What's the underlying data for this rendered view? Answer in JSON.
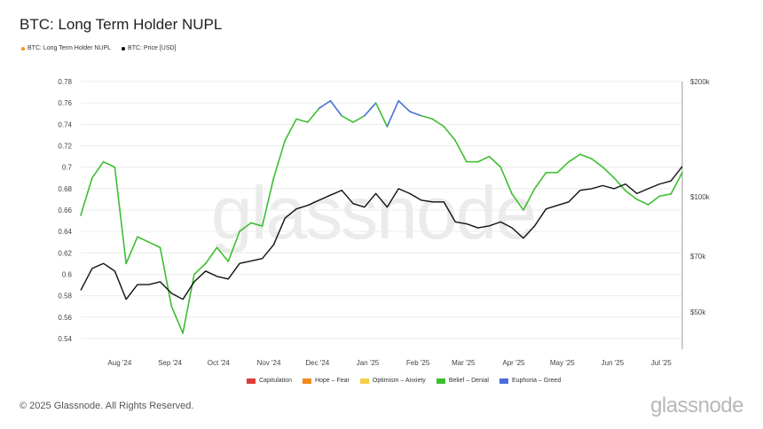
{
  "title": "BTC: Long Term Holder NUPL",
  "legend": [
    {
      "label": "BTC: Long Term Holder NUPL",
      "color": "#f7931a"
    },
    {
      "label": "BTC: Price [USD]",
      "color": "#000000"
    }
  ],
  "watermark": "glassnode",
  "footer": "© 2025 Glassnode. All Rights Reserved.",
  "brand": "glassnode",
  "zones": [
    {
      "label": "Capitulation",
      "color": "#e03b3b"
    },
    {
      "label": "Hope – Fear",
      "color": "#f28a1b"
    },
    {
      "label": "Optimism – Anxiety",
      "color": "#f5cf4a"
    },
    {
      "label": "Belief – Denial",
      "color": "#3cbf2f"
    },
    {
      "label": "Euphoria – Greed",
      "color": "#4a6fd8"
    }
  ],
  "chart_data": {
    "type": "line",
    "x_ticks": [
      "Aug '24",
      "Sep '24",
      "Oct '24",
      "Nov '24",
      "Dec '24",
      "Jan '25",
      "Feb '25",
      "Mar '25",
      "Apr '25",
      "May '25",
      "Jun '25",
      "Jul '25"
    ],
    "y_left": {
      "ticks": [
        "0.78",
        "0.76",
        "0.74",
        "0.72",
        "0.7",
        "0.68",
        "0.66",
        "0.64",
        "0.62",
        "0.6",
        "0.58",
        "0.56",
        "0.54"
      ],
      "range": [
        0.53,
        0.78
      ]
    },
    "y_right": {
      "ticks": [
        "$200k",
        "$100k",
        "$70k",
        "$50k"
      ],
      "scale": "log",
      "range": [
        40000,
        200000
      ]
    },
    "grid": "horizontal",
    "legend_position": "top-left",
    "x": [
      "2024-07-08",
      "2024-07-15",
      "2024-07-22",
      "2024-07-29",
      "2024-08-05",
      "2024-08-12",
      "2024-08-19",
      "2024-08-26",
      "2024-09-02",
      "2024-09-09",
      "2024-09-16",
      "2024-09-23",
      "2024-09-30",
      "2024-10-07",
      "2024-10-14",
      "2024-10-21",
      "2024-10-28",
      "2024-11-04",
      "2024-11-11",
      "2024-11-18",
      "2024-11-25",
      "2024-12-02",
      "2024-12-09",
      "2024-12-16",
      "2024-12-23",
      "2024-12-30",
      "2025-01-06",
      "2025-01-13",
      "2025-01-20",
      "2025-01-27",
      "2025-02-03",
      "2025-02-10",
      "2025-02-17",
      "2025-02-24",
      "2025-03-03",
      "2025-03-10",
      "2025-03-17",
      "2025-03-24",
      "2025-03-31",
      "2025-04-07",
      "2025-04-14",
      "2025-04-21",
      "2025-04-28",
      "2025-05-05",
      "2025-05-12",
      "2025-05-19",
      "2025-05-26",
      "2025-06-02",
      "2025-06-09",
      "2025-06-16",
      "2025-06-23",
      "2025-06-30",
      "2025-07-07",
      "2025-07-14"
    ],
    "series": [
      {
        "name": "BTC: Long Term Holder NUPL",
        "values": [
          0.655,
          0.69,
          0.705,
          0.7,
          0.61,
          0.635,
          0.63,
          0.625,
          0.57,
          0.545,
          0.6,
          0.61,
          0.625,
          0.612,
          0.64,
          0.648,
          0.645,
          0.69,
          0.725,
          0.745,
          0.742,
          0.755,
          0.762,
          0.748,
          0.742,
          0.748,
          0.76,
          0.738,
          0.762,
          0.752,
          0.748,
          0.745,
          0.738,
          0.725,
          0.705,
          0.705,
          0.71,
          0.7,
          0.675,
          0.66,
          0.68,
          0.695,
          0.695,
          0.705,
          0.712,
          0.708,
          0.7,
          0.69,
          0.678,
          0.67,
          0.665,
          0.673,
          0.675,
          0.695
        ],
        "zones": [
          "Belief – Denial",
          "Euphoria – Greed"
        ]
      },
      {
        "name": "BTC: Price [USD]",
        "values": [
          57000,
          65000,
          67000,
          64000,
          54000,
          59000,
          59000,
          60000,
          56000,
          54000,
          60000,
          64000,
          62000,
          61000,
          67000,
          68000,
          69000,
          75000,
          88000,
          93000,
          95000,
          98000,
          101000,
          104000,
          96000,
          94000,
          102000,
          94000,
          105000,
          102000,
          98000,
          97000,
          97000,
          86000,
          85000,
          83000,
          84000,
          86000,
          83000,
          78000,
          84000,
          93000,
          95000,
          97000,
          104000,
          105000,
          107000,
          105000,
          108000,
          102000,
          105000,
          108000,
          110000,
          120000
        ]
      }
    ]
  }
}
